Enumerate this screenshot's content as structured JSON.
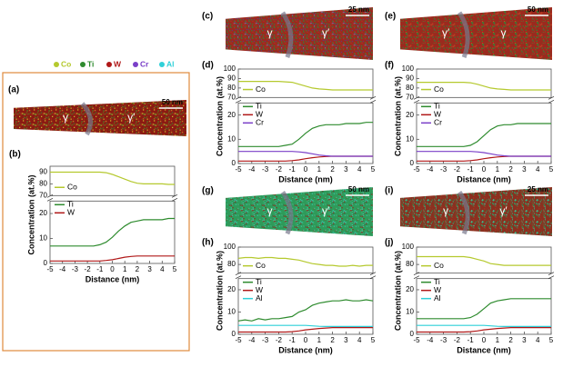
{
  "legend": [
    {
      "name": "Co",
      "color": "#b5c92e"
    },
    {
      "name": "Ti",
      "color": "#2e8b2e"
    },
    {
      "name": "W",
      "color": "#b01818"
    },
    {
      "name": "Cr",
      "color": "#7a3fc8"
    },
    {
      "name": "Al",
      "color": "#2fd0d8"
    }
  ],
  "images": [
    {
      "label": "(a)",
      "scale": "50 nm",
      "phases": [
        "γ",
        "γ′"
      ]
    },
    {
      "label": "(c)",
      "scale": "25 nm",
      "phases": [
        "γ",
        "γ′"
      ]
    },
    {
      "label": "(e)",
      "scale": "50 nm",
      "phases": [
        "γ′",
        "γ"
      ]
    },
    {
      "label": "(g)",
      "scale": "50 nm",
      "phases": [
        "γ",
        "γ′"
      ]
    },
    {
      "label": "(i)",
      "scale": "25 nm",
      "phases": [
        "γ",
        "γ′"
      ]
    }
  ],
  "chart_data": [
    {
      "type": "line",
      "label": "(b)",
      "xlabel": "Distance (nm)",
      "ylabel": "Concentration (at.%)",
      "x": [
        -5,
        -4.5,
        -4,
        -3.5,
        -3,
        -2.5,
        -2,
        -1.5,
        -1,
        -0.5,
        0,
        0.5,
        1,
        1.5,
        2,
        2.5,
        3,
        3.5,
        4,
        4.5,
        5
      ],
      "xlim": [
        -5,
        5
      ],
      "xticks": [
        -5,
        -4,
        -3,
        -2,
        -1,
        0,
        1,
        2,
        3,
        4,
        5
      ],
      "ylim": [
        0,
        95
      ],
      "yticks": [
        0,
        10,
        20,
        70,
        80,
        90
      ],
      "ybreak": [
        25,
        70
      ],
      "series": [
        {
          "name": "Co",
          "color": "#b5c92e",
          "values": [
            90,
            90,
            90,
            90,
            90,
            90,
            90,
            90,
            90,
            89.5,
            88,
            86,
            84,
            82,
            80.5,
            80,
            80,
            80,
            80,
            79.5,
            79.5
          ]
        },
        {
          "name": "Ti",
          "color": "#2e8b2e",
          "values": [
            7,
            7,
            7,
            7,
            7,
            7,
            7,
            7,
            7.5,
            8.5,
            10.5,
            13,
            15,
            16.5,
            17,
            17.5,
            17.5,
            17.5,
            17.5,
            18,
            18
          ]
        },
        {
          "name": "W",
          "color": "#b01818",
          "values": [
            1,
            1,
            1,
            1,
            1,
            1,
            1,
            1,
            1,
            1.2,
            1.5,
            2,
            2.5,
            2.8,
            3,
            3,
            3,
            3,
            3,
            3,
            3
          ]
        }
      ]
    },
    {
      "type": "line",
      "label": "(d)",
      "xlabel": "Distance (nm)",
      "ylabel": "Concentration (at.%)",
      "x": [
        -5,
        -4.5,
        -4,
        -3.5,
        -3,
        -2.5,
        -2,
        -1.5,
        -1,
        -0.5,
        0,
        0.5,
        1,
        1.5,
        2,
        2.5,
        3,
        3.5,
        4,
        4.5,
        5
      ],
      "xlim": [
        -5,
        5
      ],
      "xticks": [
        -5,
        -4,
        -3,
        -2,
        -1,
        0,
        1,
        2,
        3,
        4,
        5
      ],
      "ylim": [
        0,
        100
      ],
      "yticks": [
        0,
        10,
        20,
        70,
        80,
        90,
        100
      ],
      "ybreak": [
        25,
        70
      ],
      "series": [
        {
          "name": "Co",
          "color": "#b5c92e",
          "values": [
            87,
            87,
            87,
            87,
            87,
            87,
            87,
            86.5,
            86,
            84,
            82,
            80,
            79,
            78.5,
            78,
            78,
            78,
            78,
            78,
            78,
            78
          ]
        },
        {
          "name": "Ti",
          "color": "#2e8b2e",
          "values": [
            7,
            7,
            7,
            7,
            7,
            7,
            7,
            7.5,
            8,
            10,
            12.5,
            14.5,
            15.5,
            16,
            16,
            16,
            16.5,
            16.5,
            16.5,
            17,
            17
          ]
        },
        {
          "name": "W",
          "color": "#b01818",
          "values": [
            1,
            1,
            1,
            1,
            1,
            1,
            1,
            1,
            1.2,
            1.5,
            2,
            2.4,
            2.7,
            2.9,
            3,
            3,
            3,
            3,
            3,
            3,
            3
          ]
        },
        {
          "name": "Cr",
          "color": "#7a3fc8",
          "values": [
            5,
            5,
            5,
            5,
            5,
            5,
            5,
            5,
            5,
            4.8,
            4.5,
            4,
            3.5,
            3.2,
            3,
            3,
            3,
            3,
            3,
            3,
            3
          ]
        }
      ]
    },
    {
      "type": "line",
      "label": "(f)",
      "xlabel": "Distance (nm)",
      "ylabel": "Concentration (at.%)",
      "x": [
        -5,
        -4.5,
        -4,
        -3.5,
        -3,
        -2.5,
        -2,
        -1.5,
        -1,
        -0.5,
        0,
        0.5,
        1,
        1.5,
        2,
        2.5,
        3,
        3.5,
        4,
        4.5,
        5
      ],
      "xlim": [
        -5,
        5
      ],
      "xticks": [
        -5,
        -4,
        -3,
        -2,
        -1,
        0,
        1,
        2,
        3,
        4,
        5
      ],
      "ylim": [
        0,
        100
      ],
      "yticks": [
        0,
        10,
        20,
        70,
        80,
        90,
        100
      ],
      "ybreak": [
        25,
        70
      ],
      "series": [
        {
          "name": "Co",
          "color": "#b5c92e",
          "values": [
            86,
            86,
            86,
            86,
            86,
            86,
            86,
            86,
            85.5,
            84,
            82,
            80,
            79,
            78.5,
            78,
            78,
            78,
            78,
            78,
            78,
            78
          ]
        },
        {
          "name": "Ti",
          "color": "#2e8b2e",
          "values": [
            7,
            7,
            7,
            7,
            7,
            7,
            7,
            7,
            7.5,
            9,
            11.5,
            14,
            15.5,
            16,
            16,
            16.5,
            16.5,
            16.5,
            16.5,
            16.5,
            16.5
          ]
        },
        {
          "name": "W",
          "color": "#b01818",
          "values": [
            1,
            1,
            1,
            1,
            1,
            1,
            1,
            1,
            1.2,
            1.5,
            2,
            2.4,
            2.7,
            2.9,
            3,
            3,
            3,
            3,
            3,
            3,
            3
          ]
        },
        {
          "name": "Cr",
          "color": "#7a3fc8",
          "values": [
            5,
            5,
            5,
            5,
            5,
            5,
            5,
            5,
            5,
            4.8,
            4.5,
            4,
            3.5,
            3.2,
            3,
            3,
            3,
            3,
            3,
            3,
            3
          ]
        }
      ]
    },
    {
      "type": "line",
      "label": "(h)",
      "xlabel": "Distance (nm)",
      "ylabel": "Concentration (at.%)",
      "x": [
        -5,
        -4.5,
        -4,
        -3.5,
        -3,
        -2.5,
        -2,
        -1.5,
        -1,
        -0.5,
        0,
        0.5,
        1,
        1.5,
        2,
        2.5,
        3,
        3.5,
        4,
        4.5,
        5
      ],
      "xlim": [
        -5,
        5
      ],
      "xticks": [
        -5,
        -4,
        -3,
        -2,
        -1,
        0,
        1,
        2,
        3,
        4,
        5
      ],
      "ylim": [
        0,
        100
      ],
      "yticks": [
        0,
        10,
        20,
        80,
        100
      ],
      "ybreak": [
        25,
        70
      ],
      "series": [
        {
          "name": "Co",
          "color": "#b5c92e",
          "values": [
            87,
            88,
            88,
            87,
            88,
            88,
            87,
            87,
            86,
            85,
            83,
            81,
            80,
            79,
            79,
            78,
            78,
            79,
            78,
            79,
            79
          ]
        },
        {
          "name": "Ti",
          "color": "#2e8b2e",
          "values": [
            6,
            6.5,
            6,
            7,
            6.5,
            7,
            7,
            7.5,
            8,
            10,
            11,
            13,
            14,
            14.5,
            15,
            15,
            15.5,
            15,
            15,
            15.5,
            15
          ]
        },
        {
          "name": "W",
          "color": "#b01818",
          "values": [
            1,
            1,
            1,
            1,
            1,
            1,
            1,
            1,
            1.2,
            1.5,
            2,
            2.3,
            2.6,
            2.8,
            3,
            3,
            3,
            3,
            3,
            3,
            3
          ]
        },
        {
          "name": "Al",
          "color": "#2fd0d8",
          "values": [
            4,
            4,
            4,
            4,
            4,
            4,
            4,
            4,
            4,
            4,
            4,
            3.8,
            3.6,
            3.5,
            3.5,
            3.5,
            3.5,
            3.5,
            3.5,
            3.5,
            3.5
          ]
        }
      ]
    },
    {
      "type": "line",
      "label": "(j)",
      "xlabel": "Distance (nm)",
      "ylabel": "Concentration (at.%)",
      "x": [
        -5,
        -4.5,
        -4,
        -3.5,
        -3,
        -2.5,
        -2,
        -1.5,
        -1,
        -0.5,
        0,
        0.5,
        1,
        1.5,
        2,
        2.5,
        3,
        3.5,
        4,
        4.5,
        5
      ],
      "xlim": [
        -5,
        5
      ],
      "xticks": [
        -5,
        -4,
        -3,
        -2,
        -1,
        0,
        1,
        2,
        3,
        4,
        5
      ],
      "ylim": [
        0,
        100
      ],
      "yticks": [
        0,
        10,
        20,
        80,
        100
      ],
      "ybreak": [
        25,
        70
      ],
      "series": [
        {
          "name": "Co",
          "color": "#b5c92e",
          "values": [
            89,
            89,
            89,
            89,
            89,
            89,
            89,
            89,
            88,
            86,
            84,
            81,
            80,
            79,
            79,
            79,
            79,
            79,
            79,
            79,
            79
          ]
        },
        {
          "name": "Ti",
          "color": "#2e8b2e",
          "values": [
            7,
            7,
            7,
            7,
            7,
            7,
            7,
            7,
            7.5,
            9,
            11.5,
            14,
            15,
            15.5,
            16,
            16,
            16,
            16,
            16,
            16,
            16
          ]
        },
        {
          "name": "W",
          "color": "#b01818",
          "values": [
            1,
            1,
            1,
            1,
            1,
            1,
            1,
            1,
            1.2,
            1.5,
            2,
            2.3,
            2.6,
            2.8,
            3,
            3,
            3,
            3,
            3,
            3,
            3
          ]
        },
        {
          "name": "Al",
          "color": "#2fd0d8",
          "values": [
            4,
            4,
            4,
            4,
            4,
            4,
            4,
            4,
            4,
            4,
            4,
            3.8,
            3.6,
            3.5,
            3.5,
            3.5,
            3.5,
            3.5,
            3.5,
            3.5,
            3.5
          ]
        }
      ]
    }
  ]
}
